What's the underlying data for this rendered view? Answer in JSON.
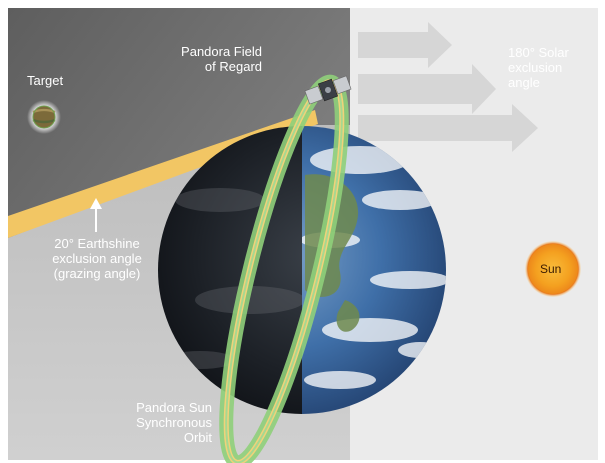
{
  "labels": {
    "target": "Target",
    "field_of_regard": [
      "Pandora Field",
      "of Regard"
    ],
    "solar_exclusion": [
      "180° Solar",
      "exclusion",
      "angle"
    ],
    "earthshine_exclusion": [
      "20° Earthshine",
      "exclusion angle",
      "(grazing angle)"
    ],
    "sun": "Sun",
    "orbit": [
      "Pandora Sun",
      "Synchronous",
      "Orbit"
    ]
  },
  "colors": {
    "night_panel": "#6e6e6e",
    "day_panel": "#ececec",
    "earthshine_band": "#f2c664",
    "orbit_green": "#8fcf7a",
    "orbit_yellow": "#f0d27a",
    "arrow_gray": "#dcdcdc",
    "sun_orange": "#f0a020",
    "ocean_blue": "#3f6fa8"
  },
  "icons": [
    "target-planet-icon",
    "satellite-icon",
    "sun-icon",
    "earth-globe-icon"
  ]
}
